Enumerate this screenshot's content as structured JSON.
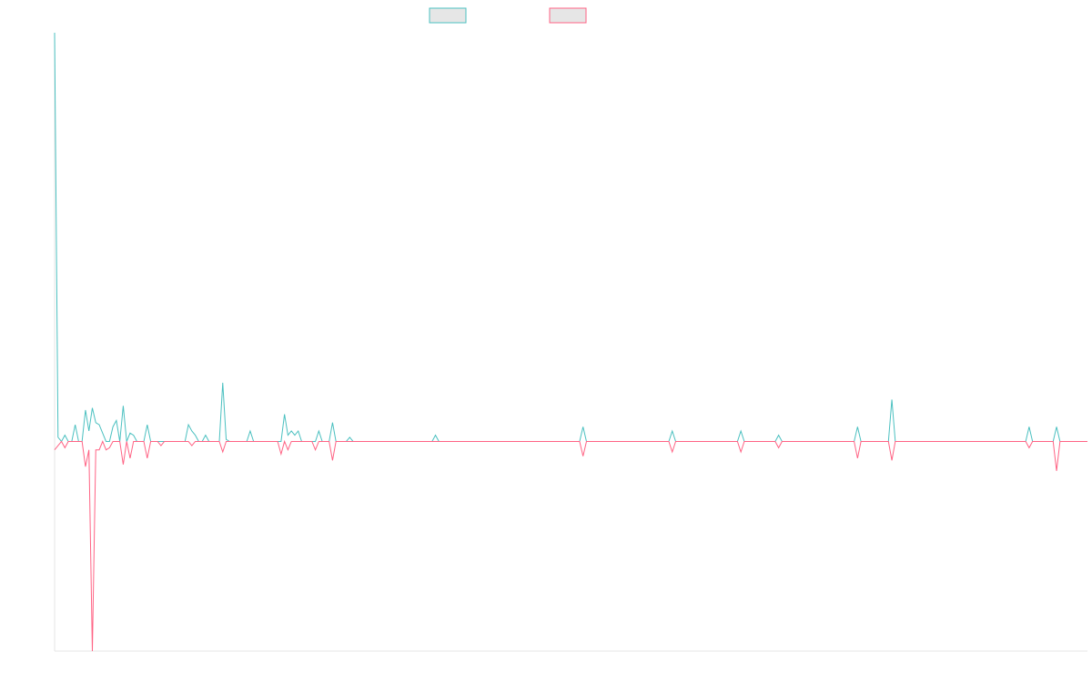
{
  "chart_data": {
    "type": "line",
    "title": "",
    "xlabel": "",
    "ylabel": "",
    "grid": false,
    "legend": {
      "placement": "top-center",
      "show_names": false
    },
    "ylim": [
      -1,
      1.95
    ],
    "colors": {
      "series_a": "#4bc0c0",
      "series_b": "#ff6384",
      "legend_fill": "#e6e6e6",
      "axis": "#e5e5e5"
    },
    "series": [
      {
        "color": "#4bc0c0",
        "values": [
          1.95,
          0.02,
          0.0,
          0.03,
          0.0,
          0.0,
          0.08,
          0.0,
          0.0,
          0.15,
          0.05,
          0.16,
          0.09,
          0.08,
          0.04,
          0.0,
          0.0,
          0.07,
          0.1,
          0.0,
          0.17,
          0.0,
          0.04,
          0.03,
          0.0,
          0.0,
          0.0,
          0.08,
          0.0,
          0.0,
          0.0,
          0.0,
          0.0,
          0.0,
          0.0,
          0.0,
          0.0,
          0.0,
          0.0,
          0.08,
          0.05,
          0.03,
          0.0,
          0.0,
          0.03,
          0.0,
          0.0,
          0.0,
          0.0,
          0.28,
          0.01,
          0.0,
          0.0,
          0.0,
          0.0,
          0.0,
          0.0,
          0.05,
          0.0,
          0.0,
          0.0,
          0.0,
          0.0,
          0.0,
          0.0,
          0.0,
          0.0,
          0.13,
          0.03,
          0.05,
          0.03,
          0.05,
          0.0,
          0.0,
          0.0,
          0.0,
          0.0,
          0.05,
          0.0,
          0.0,
          0.0,
          0.09,
          0.0,
          0.0,
          0.0,
          0.0,
          0.02,
          0.0,
          0.0,
          0.0,
          0.0,
          0.0,
          0.0,
          0.0,
          0.0,
          0.0,
          0.0,
          0.0,
          0.0,
          0.0,
          0.0,
          0.0,
          0.0,
          0.0,
          0.0,
          0.0,
          0.0,
          0.0,
          0.0,
          0.0,
          0.0,
          0.03,
          0.0,
          0.0,
          0.0,
          0.0,
          0.0,
          0.0,
          0.0,
          0.0,
          0.0,
          0.0,
          0.0,
          0.0,
          0.0,
          0.0,
          0.0,
          0.0,
          0.0,
          0.0,
          0.0,
          0.0,
          0.0,
          0.0,
          0.0,
          0.0,
          0.0,
          0.0,
          0.0,
          0.0,
          0.0,
          0.0,
          0.0,
          0.0,
          0.0,
          0.0,
          0.0,
          0.0,
          0.0,
          0.0,
          0.0,
          0.0,
          0.0,
          0.0,
          0.07,
          0.0,
          0.0,
          0.0,
          0.0,
          0.0,
          0.0,
          0.0,
          0.0,
          0.0,
          0.0,
          0.0,
          0.0,
          0.0,
          0.0,
          0.0,
          0.0,
          0.0,
          0.0,
          0.0,
          0.0,
          0.0,
          0.0,
          0.0,
          0.0,
          0.0,
          0.05,
          0.0,
          0.0,
          0.0,
          0.0,
          0.0,
          0.0,
          0.0,
          0.0,
          0.0,
          0.0,
          0.0,
          0.0,
          0.0,
          0.0,
          0.0,
          0.0,
          0.0,
          0.0,
          0.0,
          0.05,
          0.0,
          0.0,
          0.0,
          0.0,
          0.0,
          0.0,
          0.0,
          0.0,
          0.0,
          0.0,
          0.03,
          0.0,
          0.0,
          0.0,
          0.0,
          0.0,
          0.0,
          0.0,
          0.0,
          0.0,
          0.0,
          0.0,
          0.0,
          0.0,
          0.0,
          0.0,
          0.0,
          0.0,
          0.0,
          0.0,
          0.0,
          0.0,
          0.0,
          0.07,
          0.0,
          0.0,
          0.0,
          0.0,
          0.0,
          0.0,
          0.0,
          0.0,
          0.0,
          0.2,
          0.0,
          0.0,
          0.0,
          0.0,
          0.0,
          0.0,
          0.0,
          0.0,
          0.0,
          0.0,
          0.0,
          0.0,
          0.0,
          0.0,
          0.0,
          0.0,
          0.0,
          0.0,
          0.0,
          0.0,
          0.0,
          0.0,
          0.0,
          0.0,
          0.0,
          0.0,
          0.0,
          0.0,
          0.0,
          0.0,
          0.0,
          0.0,
          0.0,
          0.0,
          0.0,
          0.0,
          0.0,
          0.0,
          0.0,
          0.07,
          0.0,
          0.0,
          0.0,
          0.0,
          0.0,
          0.0,
          0.0,
          0.07,
          0.0,
          0.0,
          0.0,
          0.0,
          0.0,
          0.0,
          0.0,
          0.0,
          0.0
        ]
      },
      {
        "color": "#ff6384",
        "values": [
          -0.04,
          -0.02,
          0.0,
          -0.03,
          0.0,
          0.0,
          0.0,
          0.0,
          0.0,
          -0.12,
          -0.04,
          -1.0,
          -0.04,
          -0.04,
          0.0,
          -0.04,
          -0.03,
          0.0,
          0.0,
          0.0,
          -0.11,
          0.0,
          -0.08,
          0.0,
          0.0,
          0.0,
          0.0,
          -0.08,
          0.0,
          0.0,
          0.0,
          -0.02,
          0.0,
          0.0,
          0.0,
          0.0,
          0.0,
          0.0,
          0.0,
          0.0,
          -0.02,
          0.0,
          0.0,
          0.0,
          0.0,
          0.0,
          0.0,
          0.0,
          0.0,
          -0.05,
          0.0,
          0.0,
          0.0,
          0.0,
          0.0,
          0.0,
          0.0,
          0.0,
          0.0,
          0.0,
          0.0,
          0.0,
          0.0,
          0.0,
          0.0,
          0.0,
          -0.06,
          0.0,
          -0.04,
          0.0,
          0.0,
          0.0,
          0.0,
          0.0,
          0.0,
          0.0,
          -0.04,
          0.0,
          0.0,
          0.0,
          0.0,
          -0.09,
          0.0,
          0.0,
          0.0,
          0.0,
          0.0,
          0.0,
          0.0,
          0.0,
          0.0,
          0.0,
          0.0,
          0.0,
          0.0,
          0.0,
          0.0,
          0.0,
          0.0,
          0.0,
          0.0,
          0.0,
          0.0,
          0.0,
          0.0,
          0.0,
          0.0,
          0.0,
          0.0,
          0.0,
          0.0,
          0.0,
          0.0,
          0.0,
          0.0,
          0.0,
          0.0,
          0.0,
          0.0,
          0.0,
          0.0,
          0.0,
          0.0,
          0.0,
          0.0,
          0.0,
          0.0,
          0.0,
          0.0,
          0.0,
          0.0,
          0.0,
          0.0,
          0.0,
          0.0,
          0.0,
          0.0,
          0.0,
          0.0,
          0.0,
          0.0,
          0.0,
          0.0,
          0.0,
          0.0,
          0.0,
          0.0,
          0.0,
          0.0,
          0.0,
          0.0,
          0.0,
          0.0,
          0.0,
          -0.07,
          0.0,
          0.0,
          0.0,
          0.0,
          0.0,
          0.0,
          0.0,
          0.0,
          0.0,
          0.0,
          0.0,
          0.0,
          0.0,
          0.0,
          0.0,
          0.0,
          0.0,
          0.0,
          0.0,
          0.0,
          0.0,
          0.0,
          0.0,
          0.0,
          0.0,
          -0.05,
          0.0,
          0.0,
          0.0,
          0.0,
          0.0,
          0.0,
          0.0,
          0.0,
          0.0,
          0.0,
          0.0,
          0.0,
          0.0,
          0.0,
          0.0,
          0.0,
          0.0,
          0.0,
          0.0,
          -0.05,
          0.0,
          0.0,
          0.0,
          0.0,
          0.0,
          0.0,
          0.0,
          0.0,
          0.0,
          0.0,
          -0.03,
          0.0,
          0.0,
          0.0,
          0.0,
          0.0,
          0.0,
          0.0,
          0.0,
          0.0,
          0.0,
          0.0,
          0.0,
          0.0,
          0.0,
          0.0,
          0.0,
          0.0,
          0.0,
          0.0,
          0.0,
          0.0,
          0.0,
          -0.08,
          0.0,
          0.0,
          0.0,
          0.0,
          0.0,
          0.0,
          0.0,
          0.0,
          0.0,
          -0.09,
          0.0,
          0.0,
          0.0,
          0.0,
          0.0,
          0.0,
          0.0,
          0.0,
          0.0,
          0.0,
          0.0,
          0.0,
          0.0,
          0.0,
          0.0,
          0.0,
          0.0,
          0.0,
          0.0,
          0.0,
          0.0,
          0.0,
          0.0,
          0.0,
          0.0,
          0.0,
          0.0,
          0.0,
          0.0,
          0.0,
          0.0,
          0.0,
          0.0,
          0.0,
          0.0,
          0.0,
          0.0,
          0.0,
          0.0,
          -0.03,
          0.0,
          0.0,
          0.0,
          0.0,
          0.0,
          0.0,
          0.0,
          -0.14,
          0.0,
          0.0,
          0.0,
          0.0,
          0.0,
          0.0,
          0.0,
          0.0,
          0.0
        ]
      }
    ]
  }
}
